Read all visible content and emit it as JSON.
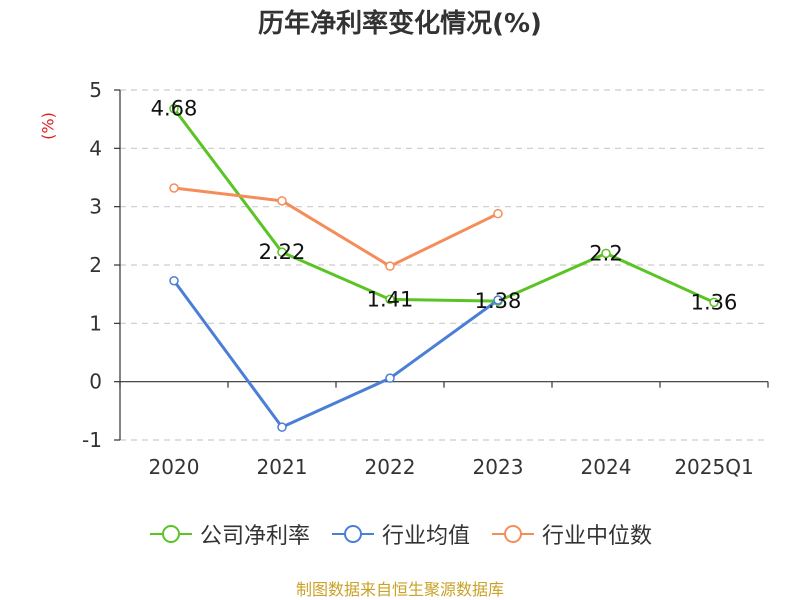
{
  "chart_data": {
    "type": "line",
    "title": "历年净利率变化情况(%)",
    "ylabel": "(%)",
    "categories": [
      "2020",
      "2021",
      "2022",
      "2023",
      "2024",
      "2025Q1"
    ],
    "ylim": [
      -1,
      5
    ],
    "yticks": [
      "-1",
      "0",
      "1",
      "2",
      "3",
      "4",
      "5"
    ],
    "grid": true,
    "legend_position": "bottom",
    "series": [
      {
        "name": "公司净利率",
        "color": "#5bc425",
        "labeled": true,
        "values": [
          4.68,
          2.22,
          1.41,
          1.38,
          2.2,
          1.36
        ],
        "labels": [
          "4.68",
          "2.22",
          "1.41",
          "1.38",
          "2.2",
          "1.36"
        ]
      },
      {
        "name": "行业均值",
        "color": "#4b7fd6",
        "labeled": false,
        "values": [
          1.73,
          -0.78,
          0.06,
          1.4,
          null,
          null
        ]
      },
      {
        "name": "行业中位数",
        "color": "#f58d5a",
        "labeled": false,
        "values": [
          3.32,
          3.1,
          1.98,
          2.88,
          null,
          null
        ]
      }
    ]
  },
  "colors": {
    "axis": "#333333",
    "grid": "#cccccc",
    "unit": "#e02020",
    "source": "#c9a227"
  },
  "source_note": "制图数据来自恒生聚源数据库"
}
